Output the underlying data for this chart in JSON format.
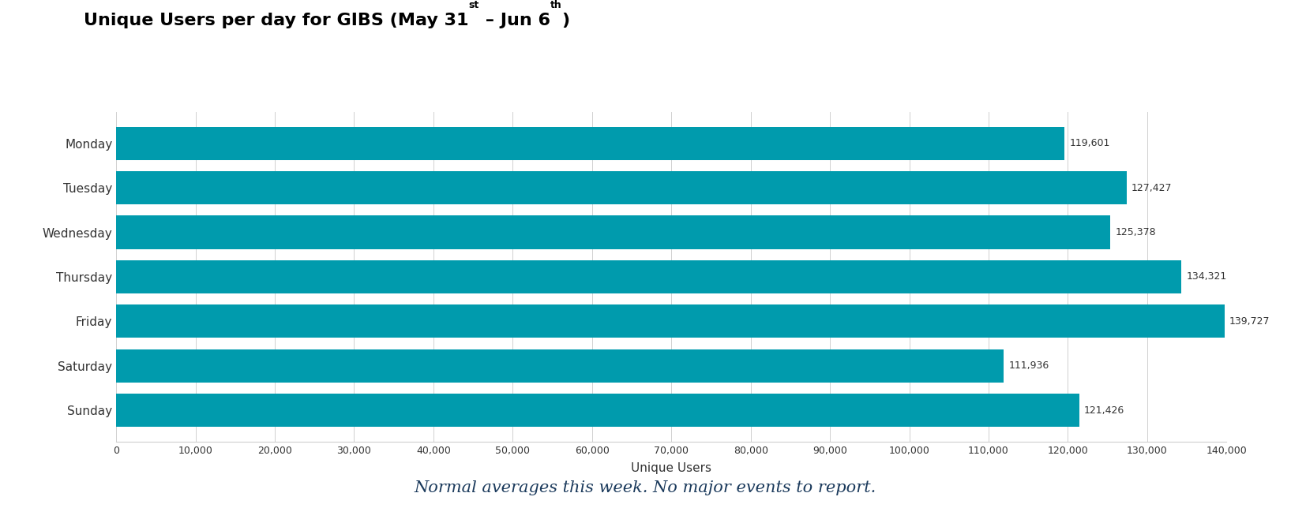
{
  "categories": [
    "Monday",
    "Tuesday",
    "Wednesday",
    "Thursday",
    "Friday",
    "Saturday",
    "Sunday"
  ],
  "values": [
    119601,
    127427,
    125378,
    134321,
    139727,
    111936,
    121426
  ],
  "bar_color": "#009BAD",
  "value_labels": [
    "119,601",
    "127,427",
    "125,378",
    "134,321",
    "139,727",
    "111,936",
    "121,426"
  ],
  "xlabel": "Unique Users",
  "xlim": [
    0,
    140000
  ],
  "xtick_values": [
    0,
    10000,
    20000,
    30000,
    40000,
    50000,
    60000,
    70000,
    80000,
    90000,
    100000,
    110000,
    120000,
    130000,
    140000
  ],
  "grid_color": "#d0d0d0",
  "background_color": "#ffffff",
  "annotation": "Normal averages this week. No major events to report.",
  "annotation_color": "#1B3A5C",
  "title_fontsize": 16,
  "bar_label_fontsize": 9,
  "ytick_fontsize": 11,
  "xtick_fontsize": 9,
  "xlabel_fontsize": 11,
  "annotation_fontsize": 15,
  "figsize": [
    16.35,
    6.44
  ],
  "dpi": 100
}
